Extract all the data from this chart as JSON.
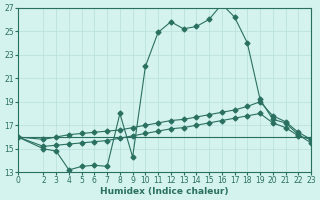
{
  "xlabel": "Humidex (Indice chaleur)",
  "bg_color": "#d4f2ee",
  "line_color": "#2a7060",
  "grid_color": "#b8e0dc",
  "xlim": [
    0,
    23
  ],
  "ylim": [
    13,
    27
  ],
  "xticks": [
    0,
    2,
    3,
    4,
    5,
    6,
    7,
    8,
    9,
    10,
    11,
    12,
    13,
    14,
    15,
    16,
    17,
    18,
    19,
    20,
    21,
    22,
    23
  ],
  "yticks": [
    13,
    15,
    17,
    19,
    21,
    23,
    25,
    27
  ],
  "line1_x": [
    0,
    2,
    3,
    4,
    5,
    6,
    7,
    8,
    9,
    10,
    11,
    12,
    13,
    14,
    15,
    16,
    17,
    18,
    19,
    20,
    21,
    22,
    23
  ],
  "line1_y": [
    16,
    15.0,
    14.8,
    13.2,
    13.5,
    13.6,
    13.5,
    18.0,
    14.3,
    22.0,
    24.9,
    25.8,
    25.2,
    25.4,
    26.0,
    27.3,
    26.2,
    24.0,
    19.2,
    17.5,
    17.2,
    16.2,
    15.5
  ],
  "line2_x": [
    0,
    2,
    3,
    4,
    5,
    6,
    7,
    8,
    9,
    10,
    11,
    12,
    13,
    14,
    15,
    16,
    17,
    18,
    19,
    20,
    21,
    22,
    23
  ],
  "line2_y": [
    16,
    15.8,
    16.0,
    16.2,
    16.3,
    16.4,
    16.5,
    16.6,
    16.8,
    17.0,
    17.2,
    17.4,
    17.5,
    17.7,
    17.9,
    18.1,
    18.3,
    18.6,
    19.0,
    17.8,
    17.3,
    16.4,
    15.8
  ],
  "line3_x": [
    0,
    2,
    3,
    4,
    5,
    6,
    7,
    8,
    9,
    10,
    11,
    12,
    13,
    14,
    15,
    16,
    17,
    18,
    19,
    20,
    21,
    22,
    23
  ],
  "line3_y": [
    16,
    15.2,
    15.3,
    15.4,
    15.5,
    15.6,
    15.7,
    15.9,
    16.1,
    16.3,
    16.5,
    16.7,
    16.8,
    17.0,
    17.2,
    17.4,
    17.6,
    17.8,
    18.0,
    17.2,
    16.8,
    16.1,
    15.8
  ],
  "line4_x": [
    0,
    23
  ],
  "line4_y": [
    16.0,
    16.0
  ]
}
